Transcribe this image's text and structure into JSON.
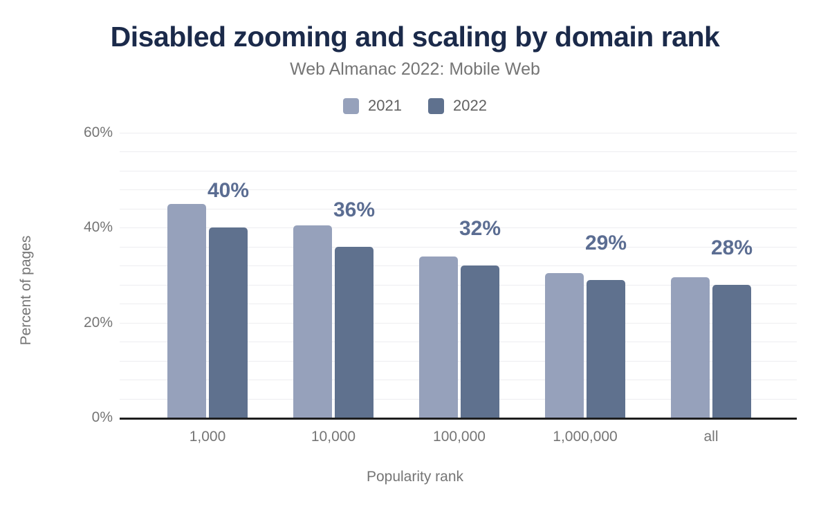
{
  "chart_data": {
    "type": "bar",
    "title": "Disabled zooming and scaling by domain rank",
    "subtitle": "Web Almanac 2022: Mobile Web",
    "xlabel": "Popularity rank",
    "ylabel": "Percent of pages",
    "categories": [
      "1,000",
      "10,000",
      "100,000",
      "1,000,000",
      "all"
    ],
    "series": [
      {
        "name": "2021",
        "color": "#96a1bb",
        "values": [
          45,
          40.5,
          34,
          30.5,
          29.5
        ]
      },
      {
        "name": "2022",
        "color": "#5f718e",
        "values": [
          40,
          36,
          32,
          29,
          28
        ],
        "data_labels": [
          "40%",
          "36%",
          "32%",
          "29%",
          "28%"
        ]
      }
    ],
    "y_ticks": [
      "0%",
      "20%",
      "40%",
      "60%"
    ],
    "y_tick_values": [
      0,
      20,
      40,
      60
    ],
    "ylim": [
      0,
      62
    ],
    "grid_step_pct": 4,
    "grid_max_pct": 60,
    "legend_position": "top",
    "legend_entries": [
      "2021",
      "2022"
    ],
    "colors": {
      "title": "#1b2a4a",
      "subtitle": "#757575",
      "axis_text": "#757575",
      "legend_text": "#616161",
      "data_label": "#5b6d92",
      "gridline": "#ededf0",
      "axis_line": "#1d1d1d",
      "background": "#ffffff"
    }
  }
}
